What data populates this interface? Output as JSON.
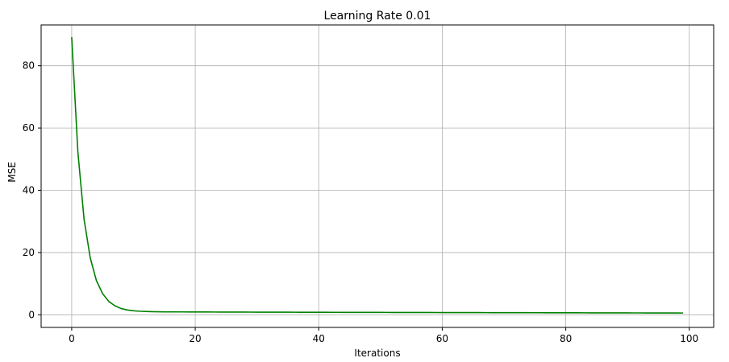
{
  "chart_data": {
    "type": "line",
    "title": "Learning Rate 0.01",
    "xlabel": "Iterations",
    "ylabel": "MSE",
    "xlim": [
      -4.95,
      103.95
    ],
    "ylim": [
      -4.05,
      93.1
    ],
    "xticks": [
      0,
      20,
      40,
      60,
      80,
      100
    ],
    "yticks": [
      0,
      20,
      40,
      60,
      80
    ],
    "grid": true,
    "series": [
      {
        "color": "#008000",
        "x": [
          0,
          1,
          2,
          3,
          4,
          5,
          6,
          7,
          8,
          9,
          10,
          11,
          12,
          13,
          14,
          15,
          16,
          17,
          18,
          19,
          20,
          21,
          22,
          23,
          24,
          25,
          26,
          27,
          28,
          29,
          30,
          31,
          32,
          33,
          34,
          35,
          36,
          37,
          38,
          39,
          40,
          41,
          42,
          43,
          44,
          45,
          46,
          47,
          48,
          49,
          50,
          51,
          52,
          53,
          54,
          55,
          56,
          57,
          58,
          59,
          60,
          61,
          62,
          63,
          64,
          65,
          66,
          67,
          68,
          69,
          70,
          71,
          72,
          73,
          74,
          75,
          76,
          77,
          78,
          79,
          80,
          81,
          82,
          83,
          84,
          85,
          86,
          87,
          88,
          89,
          90,
          91,
          92,
          93,
          94,
          95,
          96,
          97,
          98,
          99
        ],
        "y": [
          89.2,
          52.3,
          30.7,
          18.3,
          11.0,
          6.8,
          4.3,
          2.9,
          2.0,
          1.55,
          1.3,
          1.15,
          1.06,
          1.0,
          0.97,
          0.95,
          0.94,
          0.93,
          0.92,
          0.91,
          0.905,
          0.9,
          0.895,
          0.89,
          0.885,
          0.88,
          0.875,
          0.87,
          0.865,
          0.86,
          0.855,
          0.85,
          0.845,
          0.84,
          0.835,
          0.83,
          0.825,
          0.82,
          0.815,
          0.81,
          0.806,
          0.802,
          0.798,
          0.794,
          0.79,
          0.786,
          0.782,
          0.778,
          0.774,
          0.77,
          0.766,
          0.762,
          0.758,
          0.754,
          0.75,
          0.746,
          0.742,
          0.738,
          0.734,
          0.73,
          0.726,
          0.722,
          0.718,
          0.714,
          0.71,
          0.706,
          0.702,
          0.698,
          0.694,
          0.69,
          0.686,
          0.682,
          0.678,
          0.674,
          0.67,
          0.666,
          0.662,
          0.658,
          0.654,
          0.65,
          0.646,
          0.642,
          0.638,
          0.634,
          0.63,
          0.626,
          0.622,
          0.618,
          0.614,
          0.61,
          0.606,
          0.602,
          0.598,
          0.594,
          0.59,
          0.586,
          0.582,
          0.578,
          0.574,
          0.57
        ]
      }
    ]
  }
}
